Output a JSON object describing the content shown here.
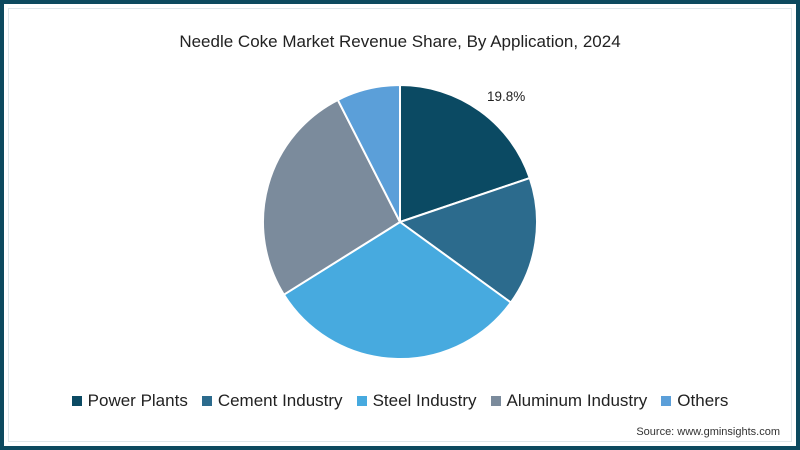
{
  "title": "Needle Coke Market Revenue Share, By Application, 2024",
  "source": "Source: www.gminsights.com",
  "frame_color": "#0d4a5f",
  "label": "19.8%",
  "legend": [
    {
      "label": "Power Plants",
      "color": "#0b4a63"
    },
    {
      "label": "Cement Industry",
      "color": "#2c6b8d"
    },
    {
      "label": "Steel Industry",
      "color": "#47aadf"
    },
    {
      "label": "Aluminum Industry",
      "color": "#7b8b9c"
    },
    {
      "label": "Others",
      "color": "#5b9fd9"
    }
  ],
  "chart_data": {
    "type": "pie",
    "title": "Needle Coke Market Revenue Share, By Application, 2024",
    "categories": [
      "Power Plants",
      "Cement Industry",
      "Steel Industry",
      "Aluminum Industry",
      "Others"
    ],
    "values": [
      19.8,
      15.2,
      31.1,
      26.4,
      7.5
    ],
    "colors": [
      "#0b4a63",
      "#2c6b8d",
      "#47aadf",
      "#7b8b9c",
      "#5b9fd9"
    ],
    "annotations": [
      {
        "category": "Power Plants",
        "text": "19.8%"
      }
    ],
    "start_angle_deg": 0,
    "direction": "clockwise",
    "legend_position": "bottom",
    "units": "%"
  }
}
